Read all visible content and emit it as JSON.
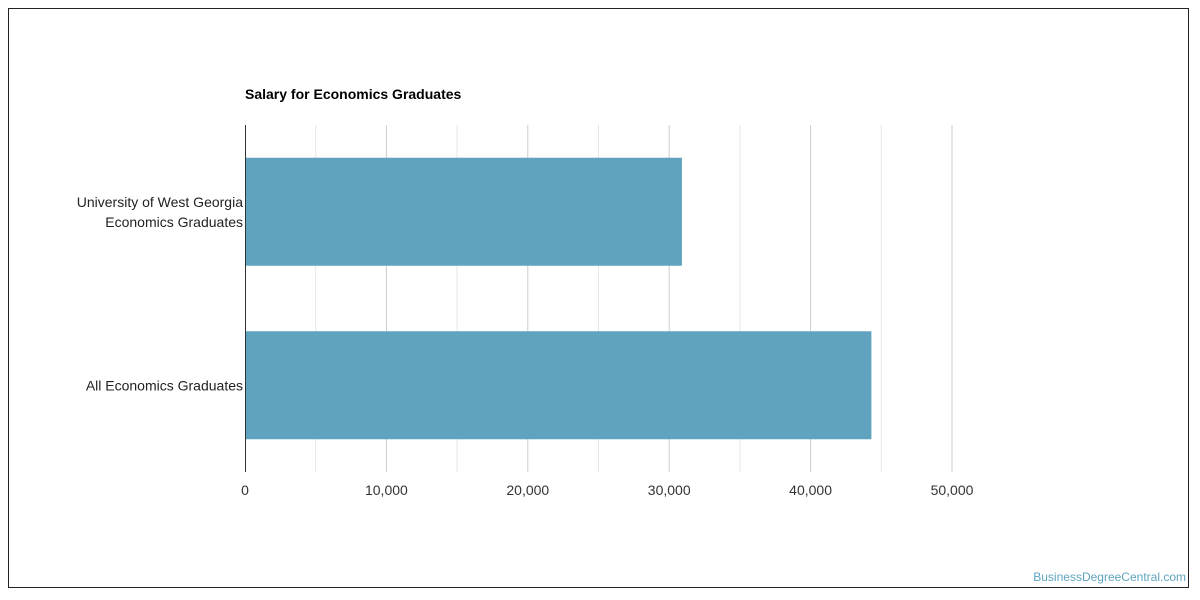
{
  "chart_data": {
    "type": "bar",
    "orientation": "horizontal",
    "title": "Salary for Economics Graduates",
    "categories": [
      [
        "University of West Georgia",
        "Economics Graduates"
      ],
      [
        "All Economics Graduates"
      ]
    ],
    "values": [
      30900,
      44300
    ],
    "xlim": [
      0,
      50000
    ],
    "xticks": [
      0,
      10000,
      20000,
      30000,
      40000,
      50000
    ],
    "xtick_labels": [
      "0",
      "10,000",
      "20,000",
      "30,000",
      "40,000",
      "50,000"
    ],
    "xlabel": "",
    "ylabel": "",
    "grid": true,
    "bar_color": "#5fa3bf"
  },
  "watermark": "BusinessDegreeCentral.com"
}
